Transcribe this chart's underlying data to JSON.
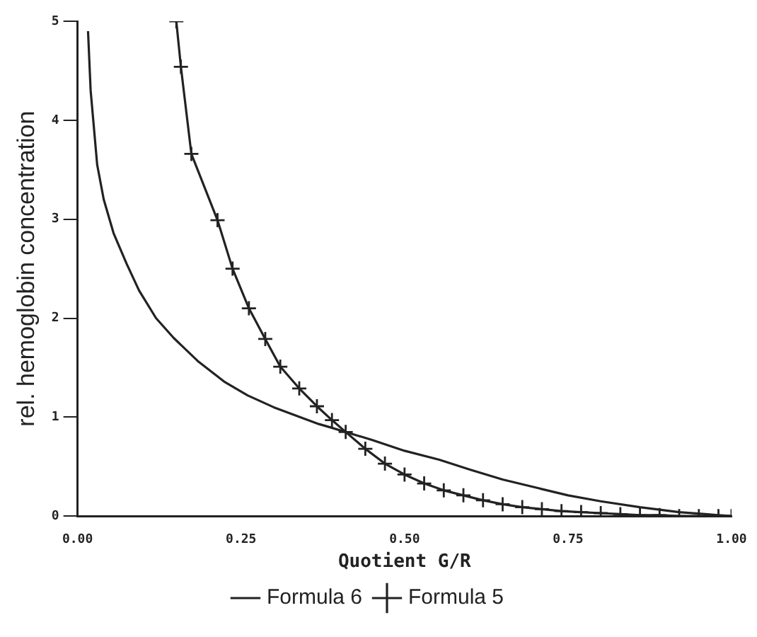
{
  "chart_data": {
    "type": "line",
    "xlabel": "Quotient G/R",
    "ylabel": "rel. hemoglobin concentration",
    "xlim": [
      0,
      1
    ],
    "xticks": [
      {
        "value": 0,
        "label": "0.00"
      },
      {
        "value": 0.25,
        "label": "0.25"
      },
      {
        "value": 0.5,
        "label": "0.50"
      },
      {
        "value": 0.75,
        "label": "0.75"
      },
      {
        "value": 1,
        "label": "1.00"
      }
    ],
    "ylim": [
      0,
      5
    ],
    "yticks": [
      0,
      1,
      2,
      3,
      4,
      5
    ],
    "grid": false,
    "legend": "bottom",
    "series": [
      {
        "name": "Formula 6",
        "color": "#222222",
        "marker": "none",
        "x": [
          0.016,
          0.02,
          0.03,
          0.04,
          0.055,
          0.075,
          0.094,
          0.12,
          0.147,
          0.185,
          0.224,
          0.26,
          0.3,
          0.369,
          0.385,
          0.45,
          0.5,
          0.553,
          0.6,
          0.65,
          0.706,
          0.75,
          0.8,
          0.86,
          0.92,
          0.96,
          1.0
        ],
        "values": [
          4.9,
          4.3,
          3.55,
          3.2,
          2.86,
          2.55,
          2.28,
          2.0,
          1.8,
          1.56,
          1.36,
          1.22,
          1.1,
          0.93,
          0.9,
          0.77,
          0.66,
          0.57,
          0.47,
          0.37,
          0.28,
          0.21,
          0.15,
          0.09,
          0.04,
          0.02,
          0
        ]
      },
      {
        "name": "Formula 5",
        "color": "#222222",
        "marker": "cross",
        "x": [
          0.151,
          0.158,
          0.174,
          0.214,
          0.237,
          0.262,
          0.287,
          0.31,
          0.339,
          0.366,
          0.389,
          0.41,
          0.44,
          0.47,
          0.5,
          0.53,
          0.56,
          0.59,
          0.62,
          0.65,
          0.68,
          0.71,
          0.74,
          0.77,
          0.8,
          0.83,
          0.86,
          0.89,
          0.92,
          0.95,
          0.98,
          1.0
        ],
        "values": [
          5.0,
          4.54,
          3.66,
          2.99,
          2.5,
          2.1,
          1.79,
          1.51,
          1.29,
          1.11,
          0.97,
          0.85,
          0.68,
          0.53,
          0.42,
          0.33,
          0.26,
          0.21,
          0.16,
          0.12,
          0.09,
          0.07,
          0.05,
          0.04,
          0.03,
          0.02,
          0.01,
          0.01,
          0,
          0,
          0,
          0
        ]
      }
    ]
  }
}
